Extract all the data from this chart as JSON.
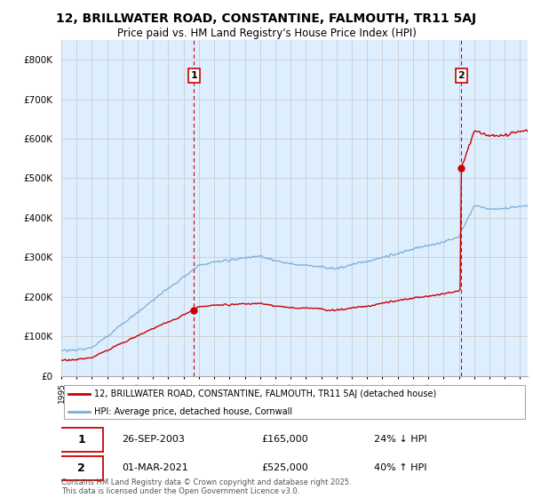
{
  "title_line1": "12, BRILLWATER ROAD, CONSTANTINE, FALMOUTH, TR11 5AJ",
  "title_line2": "Price paid vs. HM Land Registry's House Price Index (HPI)",
  "legend_label_red": "12, BRILLWATER ROAD, CONSTANTINE, FALMOUTH, TR11 5AJ (detached house)",
  "legend_label_blue": "HPI: Average price, detached house, Cornwall",
  "annotation1_date": "26-SEP-2003",
  "annotation1_price": "£165,000",
  "annotation1_hpi": "24% ↓ HPI",
  "annotation2_date": "01-MAR-2021",
  "annotation2_price": "£525,000",
  "annotation2_hpi": "40% ↑ HPI",
  "footnote": "Contains HM Land Registry data © Crown copyright and database right 2025.\nThis data is licensed under the Open Government Licence v3.0.",
  "ylim": [
    0,
    850000
  ],
  "yticks": [
    0,
    100000,
    200000,
    300000,
    400000,
    500000,
    600000,
    700000,
    800000
  ],
  "xstart": 1995,
  "xend": 2025,
  "color_red": "#cc0000",
  "color_blue": "#7aaed6",
  "color_blue_fill": "#ddeeff",
  "color_vline": "#cc0000",
  "color_grid": "#cccccc",
  "background_color": "#ffffff"
}
